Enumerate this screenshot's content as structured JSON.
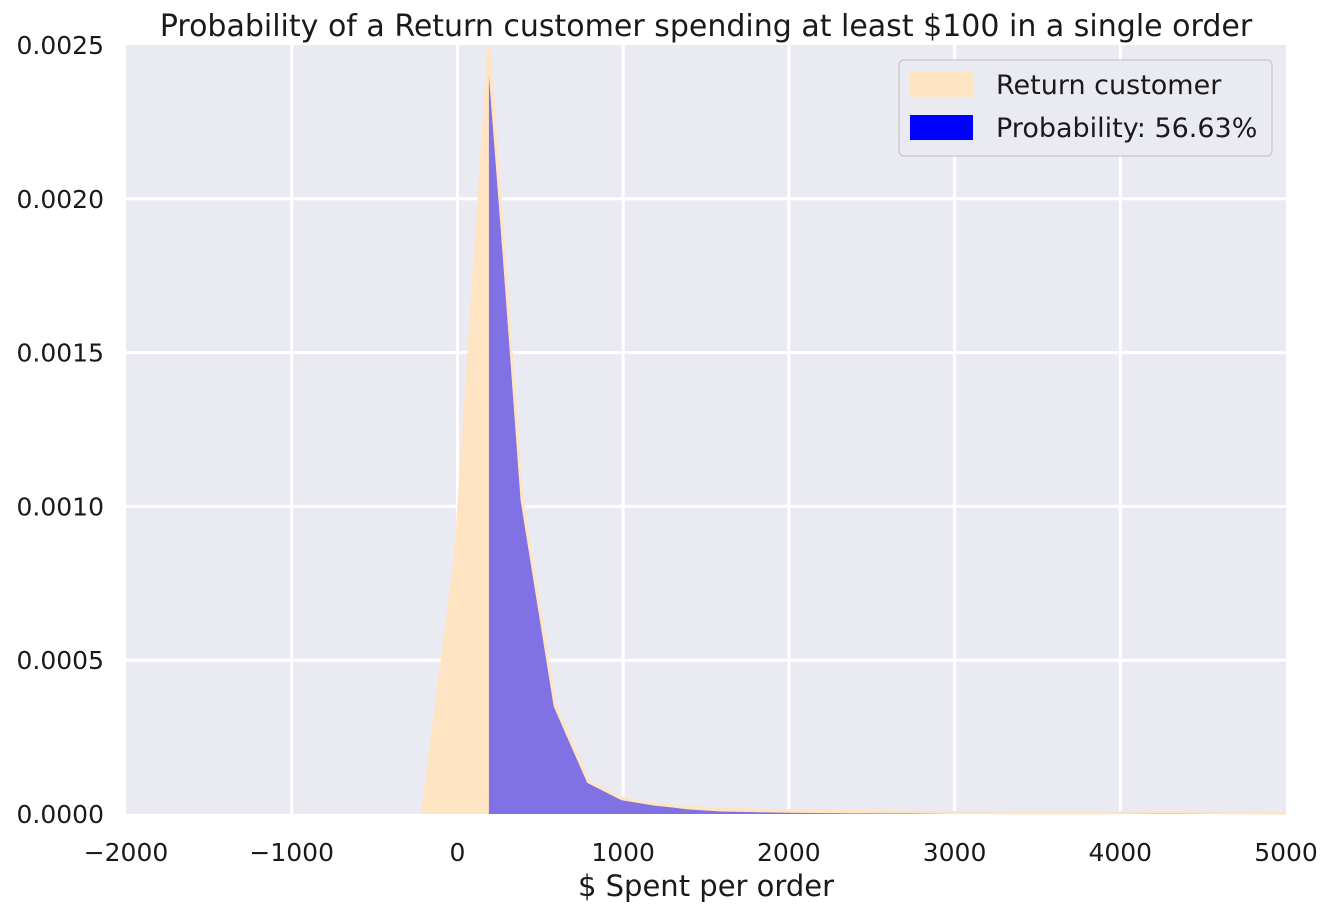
{
  "chart_data": {
    "type": "area",
    "title": "Probability of a Return customer spending at least $100 in a single order",
    "xlabel": "$ Spent per order",
    "ylabel": "",
    "xlim": [
      -2000,
      5000
    ],
    "ylim": [
      0,
      0.0025
    ],
    "grid": true,
    "legend_position": "top-right",
    "x_ticks": [
      -2000,
      -1000,
      0,
      1000,
      2000,
      3000,
      4000,
      5000
    ],
    "x_tick_labels": [
      "−2000",
      "−1000",
      "0",
      "1000",
      "2000",
      "3000",
      "4000",
      "5000"
    ],
    "y_ticks": [
      0,
      0.0005,
      0.001,
      0.0015,
      0.002,
      0.0025
    ],
    "y_tick_labels": [
      "0.0000",
      "0.0005",
      "0.0010",
      "0.0015",
      "0.0020",
      "0.0025"
    ],
    "shade_from": 190,
    "series": [
      {
        "name": "Return customer",
        "color": "#ffe4c4",
        "x": [
          -210,
          -10,
          190,
          390,
          590,
          790,
          990,
          1190,
          1390,
          1590,
          1790,
          1990,
          2190,
          2390,
          2590,
          2790,
          2990,
          3190,
          3390,
          3590,
          3790,
          3990,
          4190,
          4390,
          4590,
          4790,
          5000
        ],
        "y": [
          0.0,
          0.00085,
          0.0025,
          0.00102,
          0.00035,
          0.000105,
          5e-05,
          3.2e-05,
          2.2e-05,
          1.6e-05,
          1.3e-05,
          1.1e-05,
          9e-06,
          8e-06,
          7e-06,
          6e-06,
          5e-06,
          5e-06,
          4e-06,
          4e-06,
          4e-06,
          5e-06,
          6e-06,
          6e-06,
          5e-06,
          4e-06,
          3e-06
        ]
      },
      {
        "name": "Probability: 56.63%",
        "color": "#0000ff",
        "fill_color": "#8072e4",
        "x": [
          190,
          390,
          590,
          790,
          990,
          1190,
          1390,
          1590,
          1790,
          1990,
          2190,
          2390,
          2590,
          2790,
          2990,
          3190,
          3390,
          3590,
          3790,
          3990,
          4190,
          4390,
          4590,
          4790,
          5000
        ],
        "y": [
          0.0024,
          0.001,
          0.00034,
          0.0001,
          4.5e-05,
          2.8e-05,
          1.5e-05,
          8e-06,
          6e-06,
          4e-06,
          3e-06,
          2e-06,
          2e-06,
          2e-06,
          1e-06,
          1e-06,
          1e-06,
          1e-06,
          1e-06,
          1e-06,
          1e-06,
          1e-06,
          1e-06,
          1e-06,
          1e-06
        ]
      }
    ]
  }
}
